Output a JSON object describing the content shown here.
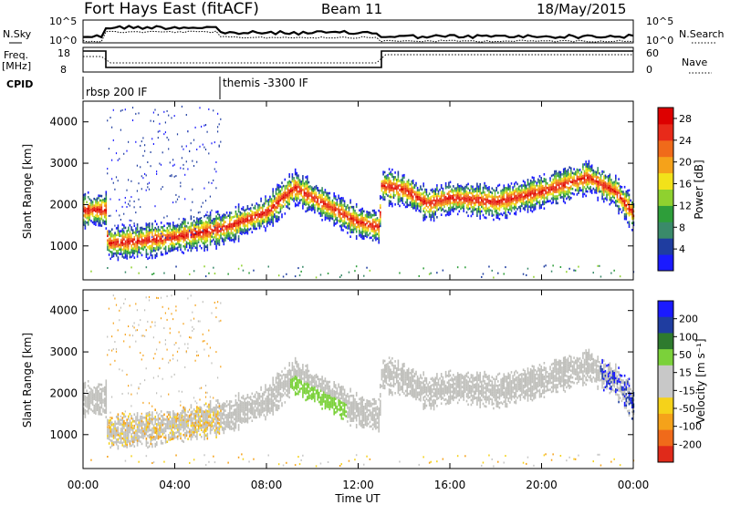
{
  "header": {
    "station": "Fort Hays East (fitACF)",
    "beam": "Beam 11",
    "date": "18/May/2015"
  },
  "strip": {
    "noise_left_label": "N.Sky",
    "noise_right_label": "N.Search",
    "noise_left_ticks": [
      "10^5",
      "10^0"
    ],
    "noise_right_ticks": [
      "10^5",
      "10^0"
    ],
    "freq_label_line1": "Freq.",
    "freq_label_line2": "[MHz]",
    "freq_ticks": [
      "18",
      "8"
    ],
    "nave_label": "Nave",
    "nave_ticks": [
      "60",
      "0"
    ],
    "cpid_label": "CPID"
  },
  "cpid_segments": [
    {
      "label": "rbsp 200 IF",
      "start_h": 0.0,
      "end_h": 6.0
    },
    {
      "label": "themis -3300 IF",
      "start_h": 6.0,
      "end_h": 24.0
    }
  ],
  "colors": {
    "power_scale": [
      "#1a1aff",
      "#1f3da0",
      "#3a8a6a",
      "#2e9e3a",
      "#8fd12f",
      "#f2e21a",
      "#f5a21a",
      "#f06a1a",
      "#e82a1a",
      "#dd0000"
    ],
    "velocity_scale": [
      "#1a1aff",
      "#1f3da0",
      "#2e7a2e",
      "#7bd13a",
      "#c8c8c8",
      "#c8c8c8",
      "#f5d21a",
      "#f5a21a",
      "#f06a1a",
      "#e02a1a"
    ],
    "velocity_gray": "#c0c0bc"
  },
  "chart_data": [
    {
      "type": "heatmap",
      "panel": "power",
      "ylabel": "Slant Range [km]",
      "xlabel": "Time UT",
      "x_ticks": [
        "00:00",
        "04:00",
        "08:00",
        "12:00",
        "16:00",
        "20:00",
        "00:00"
      ],
      "y_ticks": [
        1000,
        2000,
        3000,
        4000
      ],
      "xlim_h": [
        0,
        24
      ],
      "ylim_km": [
        180,
        4500
      ],
      "colorbar": {
        "label": "Power [dB]",
        "ticks": [
          4,
          8,
          12,
          16,
          20,
          24,
          28
        ],
        "range": [
          0,
          30
        ]
      },
      "echo_band": [
        {
          "t": 0.0,
          "r": 1850
        },
        {
          "t": 1.0,
          "r": 1850
        },
        {
          "t": 1.05,
          "r": 1050
        },
        {
          "t": 2.0,
          "r": 1080
        },
        {
          "t": 4.0,
          "r": 1200
        },
        {
          "t": 6.0,
          "r": 1400
        },
        {
          "t": 8.0,
          "r": 1800
        },
        {
          "t": 9.2,
          "r": 2400
        },
        {
          "t": 10.5,
          "r": 2000
        },
        {
          "t": 12.0,
          "r": 1550
        },
        {
          "t": 12.9,
          "r": 1450
        },
        {
          "t": 13.0,
          "r": 2450
        },
        {
          "t": 14.0,
          "r": 2350
        },
        {
          "t": 15.0,
          "r": 2000
        },
        {
          "t": 16.0,
          "r": 2150
        },
        {
          "t": 18.0,
          "r": 2050
        },
        {
          "t": 20.0,
          "r": 2300
        },
        {
          "t": 22.0,
          "r": 2650
        },
        {
          "t": 23.2,
          "r": 2300
        },
        {
          "t": 24.0,
          "r": 1750
        }
      ]
    },
    {
      "type": "heatmap",
      "panel": "velocity",
      "ylabel": "Slant Range [km]",
      "xlabel": "Time UT",
      "x_ticks": [
        "00:00",
        "04:00",
        "08:00",
        "12:00",
        "16:00",
        "20:00",
        "00:00"
      ],
      "y_ticks": [
        1000,
        2000,
        3000,
        4000
      ],
      "xlim_h": [
        0,
        24
      ],
      "ylim_km": [
        180,
        4500
      ],
      "colorbar": {
        "label": "Velocity [m s⁻¹]",
        "ticks": [
          200,
          100,
          50,
          15,
          -15,
          -50,
          -100,
          -200
        ]
      }
    }
  ]
}
